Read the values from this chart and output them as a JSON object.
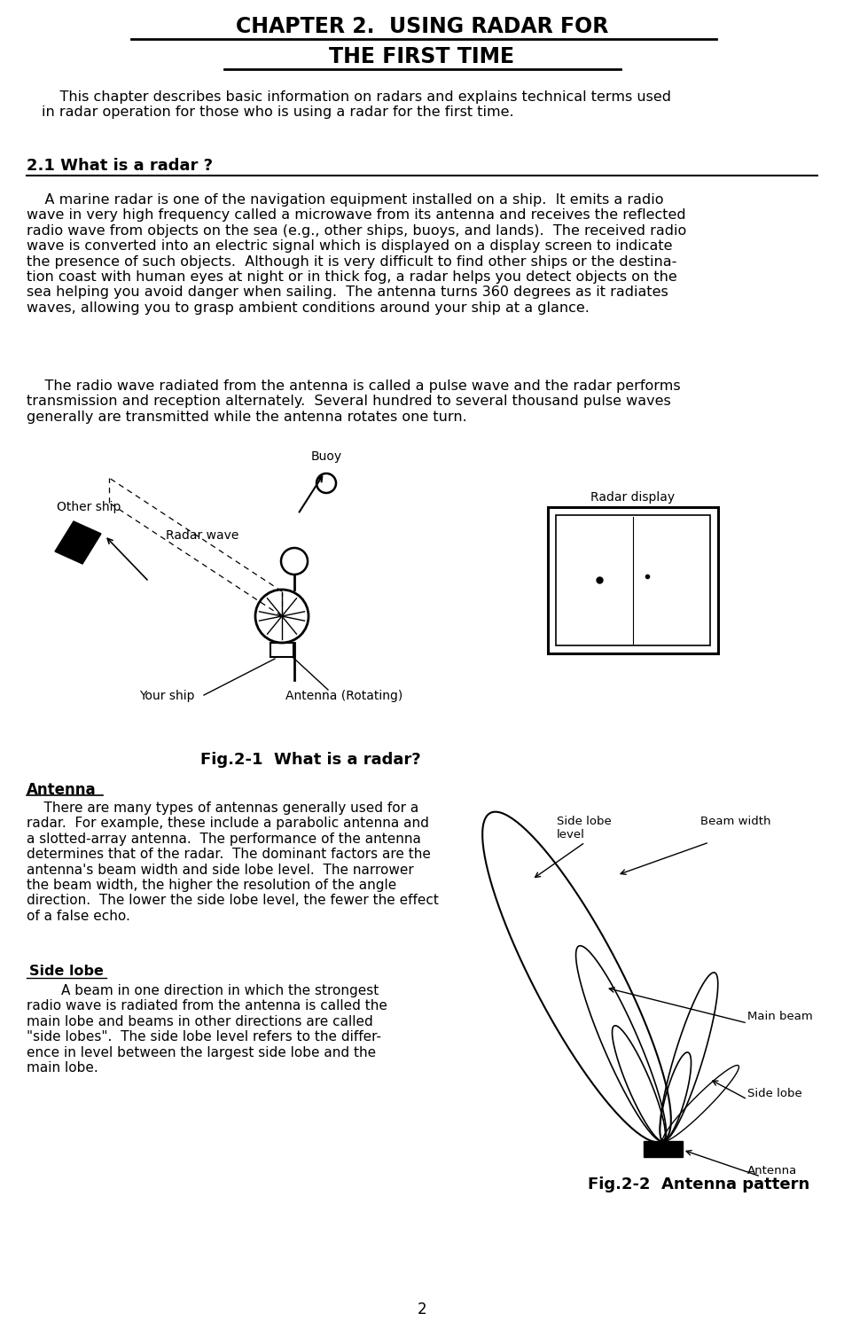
{
  "title_line1": "CHAPTER 2.  USING RADAR FOR",
  "title_line2": "THE FIRST TIME",
  "intro_text": "    This chapter describes basic information on radars and explains technical terms used\nin radar operation for those who is using a radar for the first time.",
  "section_title": "2.1 What is a radar ?",
  "para1": "    A marine radar is one of the navigation equipment installed on a ship.  It emits a radio\nwave in very high frequency called a microwave from its antenna and receives the reflected\nradio wave from objects on the sea (e.g., other ships, buoys, and lands).  The received radio\nwave is converted into an electric signal which is displayed on a display screen to indicate\nthe presence of such objects.  Although it is very difficult to find other ships or the destina-\ntion coast with human eyes at night or in thick fog, a radar helps you detect objects on the\nsea helping you avoid danger when sailing.  The antenna turns 360 degrees as it radiates\nwaves, allowing you to grasp ambient conditions around your ship at a glance.",
  "para2": "    The radio wave radiated from the antenna is called a pulse wave and the radar performs\ntransmission and reception alternately.  Several hundred to several thousand pulse waves\ngenerally are transmitted while the antenna rotates one turn.",
  "fig1_caption": "Fig.2-1  What is a radar?",
  "antenna_title": "Antenna",
  "antenna_text": "    There are many types of antennas generally used for a\nradar.  For example, these include a parabolic antenna and\na slotted-array antenna.  The performance of the antenna\ndetermines that of the radar.  The dominant factors are the\nantenna's beam width and side lobe level.  The narrower\nthe beam width, the higher the resolution of the angle\ndirection.  The lower the side lobe level, the fewer the effect\nof a false echo.",
  "sidelobe_title": "Side lobe",
  "sidelobe_text": "        A beam in one direction in which the strongest\nradio wave is radiated from the antenna is called the\nmain lobe and beams in other directions are called\n\"side lobes\".  The side lobe level refers to the differ-\nence in level between the largest side lobe and the\nmain lobe.",
  "fig2_caption": "Fig.2-2  Antenna pattern",
  "page_number": "2",
  "bg_color": "#ffffff",
  "text_color": "#000000"
}
